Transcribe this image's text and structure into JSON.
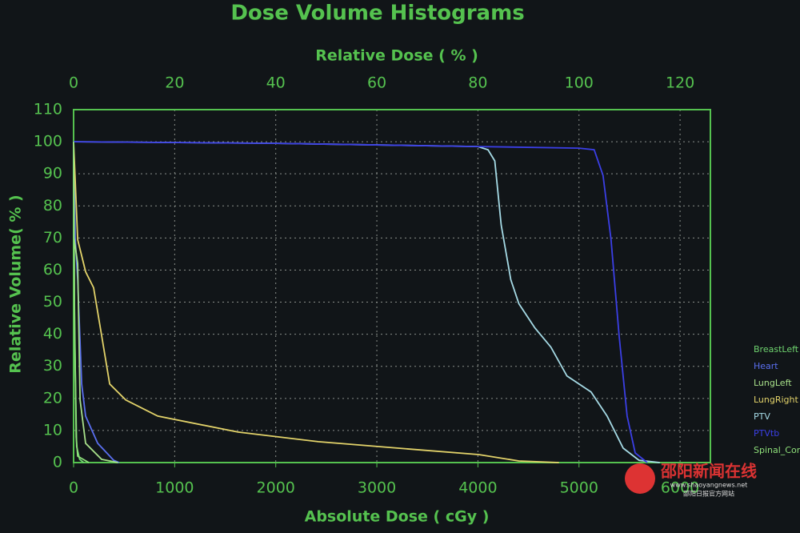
{
  "chart_data": {
    "type": "line",
    "title": "Dose Volume Histograms",
    "x2_label": "Relative Dose ( % )",
    "x_label": "Absolute Dose ( cGy )",
    "y_label": "Relative Volume( % )",
    "xlim": [
      0,
      6300
    ],
    "xticks": [
      0,
      1000,
      2000,
      3000,
      4000,
      5000,
      6000
    ],
    "x2lim": [
      0,
      126
    ],
    "x2ticks": [
      0,
      20,
      40,
      60,
      80,
      100,
      120
    ],
    "ylim": [
      0,
      110
    ],
    "yticks": [
      0,
      10,
      20,
      30,
      40,
      50,
      60,
      70,
      80,
      90,
      100,
      110
    ],
    "grid": true,
    "legend": "right",
    "series": [
      {
        "name": "BreastLeft",
        "color": "#6fd46f",
        "x": [
          0,
          10,
          30,
          60,
          100
        ],
        "values": [
          100,
          40,
          5,
          1,
          0
        ]
      },
      {
        "name": "Heart",
        "color": "#5a6ff0",
        "x": [
          0,
          16,
          40,
          80,
          119,
          238,
          397,
          450
        ],
        "values": [
          100,
          70,
          57,
          24.5,
          14.5,
          6,
          0.7,
          0
        ]
      },
      {
        "name": "LungLeft",
        "color": "#a8e08a",
        "x": [
          0,
          5,
          40,
          64,
          119,
          278,
          440
        ],
        "values": [
          100,
          70,
          62,
          19.5,
          6,
          1,
          0
        ]
      },
      {
        "name": "LungRight",
        "color": "#e3d36a",
        "x": [
          0,
          40,
          119,
          198,
          278,
          357,
          516,
          833,
          1627,
          2421,
          3214,
          4008,
          4405,
          4802
        ],
        "values": [
          100,
          69.5,
          59.5,
          54.5,
          39.5,
          24.5,
          19.5,
          14.5,
          9.5,
          6.5,
          4.5,
          2.5,
          0.5,
          0
        ]
      },
      {
        "name": "PTV",
        "color": "#a6dbe6",
        "x": [
          0,
          2000,
          4000,
          4100,
          4167,
          4230,
          4325,
          4405,
          4563,
          4722,
          4881,
          5119,
          5278,
          5437,
          5595,
          5800
        ],
        "values": [
          100,
          99.5,
          98.5,
          97.5,
          94,
          74,
          57,
          49.5,
          42,
          36,
          27,
          22,
          14.5,
          4.5,
          0.7,
          0
        ]
      },
      {
        "name": "PTVtb",
        "color": "#3b3fe6",
        "x": [
          0,
          2000,
          4000,
          5000,
          5150,
          5238,
          5317,
          5397,
          5476,
          5556,
          5675
        ],
        "values": [
          100,
          99.5,
          98.5,
          98,
          97.5,
          89.5,
          69.5,
          39.5,
          14.5,
          3,
          0
        ]
      },
      {
        "name": "Spinal_Cord",
        "color": "#8fe07a",
        "x": [
          0,
          8,
          25,
          40,
          150
        ],
        "values": [
          100,
          50,
          8,
          2,
          0
        ]
      }
    ],
    "watermark": {
      "title": "邵阳新闻在线",
      "url": "www.shaoyangnews.net",
      "subtitle": "邵阳日报官方网站"
    }
  }
}
